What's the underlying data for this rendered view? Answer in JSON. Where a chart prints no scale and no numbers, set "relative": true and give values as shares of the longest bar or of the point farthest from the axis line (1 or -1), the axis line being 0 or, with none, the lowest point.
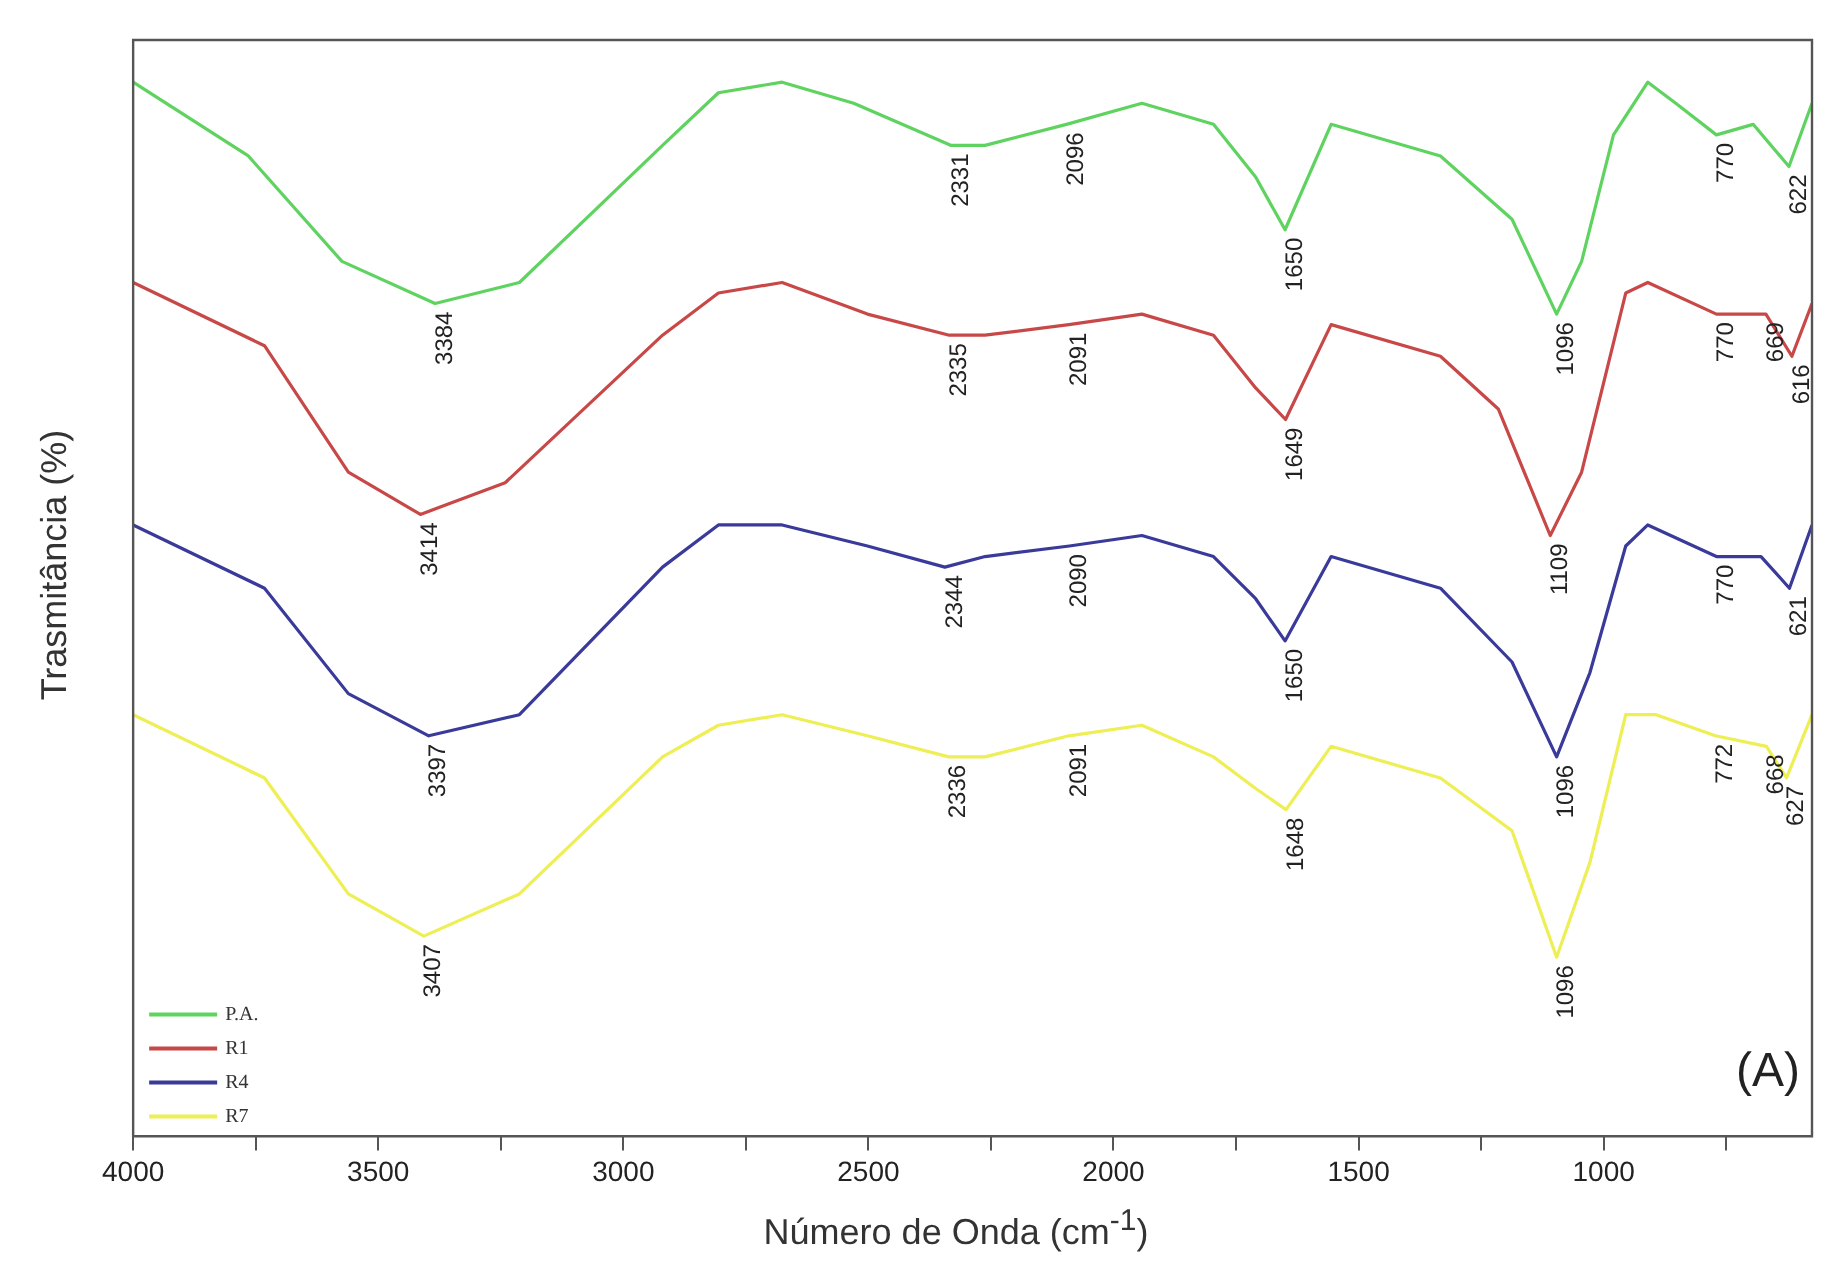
{
  "chart_data": {
    "type": "line",
    "xlabel": "Número de Onda (cm$^{-1}$)",
    "ylabel": "Trasmitância (%)",
    "relative": true,
    "xlim": [
      4000,
      575
    ],
    "xticks": [
      4000,
      {
        "value": 3750,
        "label": null
      },
      3500,
      {
        "value": 3250,
        "label": null
      },
      3000,
      {
        "value": 2750,
        "label": null
      },
      2500,
      {
        "value": 2250,
        "label": null
      },
      2000,
      {
        "value": 1750,
        "label": null
      },
      1500,
      {
        "value": 1250,
        "label": null
      },
      1000,
      {
        "value": 750,
        "label": null
      }
    ],
    "grid": false,
    "legend": "bottom left",
    "marker": "none",
    "line_style": "solid",
    "series": [
      {
        "name": "P.A.",
        "color": "#5fd35f",
        "x": [
          4000,
          3765,
          3574,
          3384,
          3212,
          2920,
          2806,
          2676,
          2530,
          2331,
          2262,
          2096,
          1942,
          1796,
          1710,
          1650,
          1556,
          1333,
          1187,
          1096,
          1045,
          980,
          910,
          853,
          770,
          695,
          622,
          575
        ],
        "values": [
          1.0,
          0.93,
          0.83,
          0.79,
          0.81,
          0.94,
          0.99,
          1.0,
          0.98,
          0.94,
          0.94,
          0.96,
          0.98,
          0.96,
          0.91,
          0.86,
          0.96,
          0.93,
          0.87,
          0.78,
          0.83,
          0.95,
          1.0,
          0.98,
          0.95,
          0.96,
          0.92,
          0.98
        ]
      },
      {
        "name": "R1",
        "color": "#c84848",
        "x": [
          4000,
          3732,
          3561,
          3414,
          3241,
          2920,
          2806,
          2676,
          2502,
          2335,
          2262,
          2091,
          1942,
          1796,
          1710,
          1649,
          1556,
          1333,
          1215,
          1109,
          1045,
          955,
          910,
          770,
          669,
          616,
          575
        ],
        "values": [
          0.81,
          0.75,
          0.63,
          0.59,
          0.62,
          0.76,
          0.8,
          0.81,
          0.78,
          0.76,
          0.76,
          0.77,
          0.78,
          0.76,
          0.71,
          0.68,
          0.77,
          0.74,
          0.69,
          0.57,
          0.63,
          0.8,
          0.81,
          0.78,
          0.78,
          0.74,
          0.79
        ]
      },
      {
        "name": "R4",
        "color": "#3a3a9a",
        "x": [
          4000,
          3732,
          3561,
          3397,
          3212,
          2920,
          2806,
          2676,
          2502,
          2344,
          2262,
          2090,
          1942,
          1796,
          1710,
          1650,
          1556,
          1333,
          1187,
          1096,
          1028,
          955,
          910,
          770,
          679,
          621,
          575
        ],
        "values": [
          0.58,
          0.52,
          0.42,
          0.38,
          0.4,
          0.54,
          0.58,
          0.58,
          0.56,
          0.54,
          0.55,
          0.56,
          0.57,
          0.55,
          0.51,
          0.47,
          0.55,
          0.52,
          0.45,
          0.36,
          0.44,
          0.56,
          0.58,
          0.55,
          0.55,
          0.52,
          0.58
        ]
      },
      {
        "name": "R7",
        "color": "#eeee55",
        "x": [
          4000,
          3732,
          3561,
          3407,
          3212,
          2920,
          2806,
          2676,
          2502,
          2336,
          2262,
          2091,
          1942,
          1796,
          1710,
          1648,
          1556,
          1333,
          1187,
          1096,
          1028,
          955,
          893,
          772,
          668,
          627,
          575
        ],
        "values": [
          0.4,
          0.34,
          0.23,
          0.19,
          0.23,
          0.36,
          0.39,
          0.4,
          0.38,
          0.36,
          0.36,
          0.38,
          0.39,
          0.36,
          0.33,
          0.31,
          0.37,
          0.34,
          0.29,
          0.17,
          0.26,
          0.4,
          0.4,
          0.38,
          0.37,
          0.34,
          0.4
        ]
      }
    ],
    "annotations": [
      {
        "text": "3384",
        "x": 3384,
        "y": 0.79
      },
      {
        "text": "2331",
        "x": 2331,
        "y": 0.94
      },
      {
        "text": "2096",
        "x": 2096,
        "y": 0.96
      },
      {
        "text": "1650",
        "x": 1650,
        "y": 0.86
      },
      {
        "text": "1096",
        "x": 1096,
        "y": 0.78
      },
      {
        "text": "770",
        "x": 770,
        "y": 0.95
      },
      {
        "text": "622",
        "x": 622,
        "y": 0.92
      },
      {
        "text": "3414",
        "x": 3414,
        "y": 0.59
      },
      {
        "text": "2335",
        "x": 2335,
        "y": 0.76
      },
      {
        "text": "2091",
        "x": 2091,
        "y": 0.77
      },
      {
        "text": "1649",
        "x": 1649,
        "y": 0.68
      },
      {
        "text": "1109",
        "x": 1109,
        "y": 0.57
      },
      {
        "text": "770",
        "x": 770,
        "y": 0.78
      },
      {
        "text": "669",
        "x": 669,
        "y": 0.78
      },
      {
        "text": "616",
        "x": 616,
        "y": 0.74
      },
      {
        "text": "3397",
        "x": 3397,
        "y": 0.38
      },
      {
        "text": "2344",
        "x": 2344,
        "y": 0.54
      },
      {
        "text": "2090",
        "x": 2090,
        "y": 0.56
      },
      {
        "text": "1650",
        "x": 1650,
        "y": 0.47
      },
      {
        "text": "1096",
        "x": 1096,
        "y": 0.36
      },
      {
        "text": "770",
        "x": 770,
        "y": 0.55
      },
      {
        "text": "621",
        "x": 621,
        "y": 0.52
      },
      {
        "text": "3407",
        "x": 3407,
        "y": 0.19
      },
      {
        "text": "2336",
        "x": 2336,
        "y": 0.36
      },
      {
        "text": "2091",
        "x": 2091,
        "y": 0.38
      },
      {
        "text": "1648",
        "x": 1648,
        "y": 0.31
      },
      {
        "text": "1096",
        "x": 1096,
        "y": 0.17
      },
      {
        "text": "772",
        "x": 772,
        "y": 0.38
      },
      {
        "text": "668",
        "x": 668,
        "y": 0.37
      },
      {
        "text": "627",
        "x": 627,
        "y": 0.34
      },
      "(A)"
    ]
  }
}
